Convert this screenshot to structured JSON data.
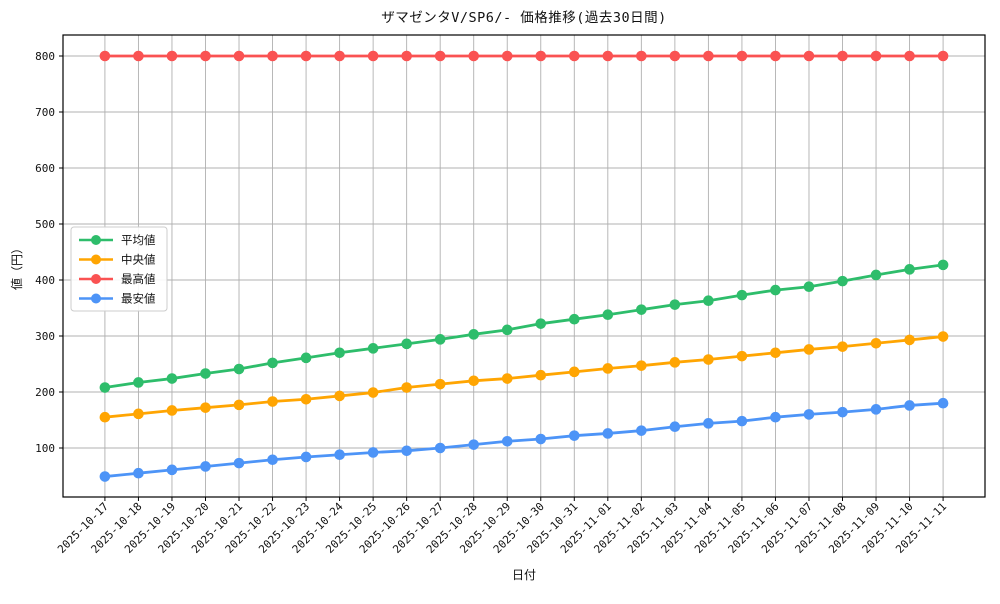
{
  "chart_data": {
    "type": "line",
    "title": "ザマゼンタV/SP6/- 価格推移(過去30日間)",
    "xlabel": "日付",
    "ylabel": "値（円）",
    "x": [
      "2025-10-17",
      "2025-10-18",
      "2025-10-19",
      "2025-10-20",
      "2025-10-21",
      "2025-10-22",
      "2025-10-23",
      "2025-10-24",
      "2025-10-25",
      "2025-10-26",
      "2025-10-27",
      "2025-10-28",
      "2025-10-29",
      "2025-10-30",
      "2025-10-31",
      "2025-11-01",
      "2025-11-02",
      "2025-11-03",
      "2025-11-04",
      "2025-11-05",
      "2025-11-06",
      "2025-11-07",
      "2025-11-08",
      "2025-11-09",
      "2025-11-10",
      "2025-11-11"
    ],
    "series": [
      {
        "key": "average",
        "name": "平均値",
        "color": "#2ebd6b",
        "values": [
          208,
          217,
          224,
          233,
          241,
          252,
          261,
          270,
          278,
          286,
          294,
          303,
          311,
          322,
          330,
          338,
          347,
          356,
          363,
          373,
          382,
          388,
          398,
          409,
          419,
          427
        ]
      },
      {
        "key": "median",
        "name": "中央値",
        "color": "#ffa502",
        "values": [
          155,
          161,
          167,
          172,
          177,
          183,
          187,
          193,
          199,
          208,
          214,
          220,
          224,
          230,
          236,
          242,
          247,
          253,
          258,
          264,
          270,
          276,
          281,
          287,
          293,
          299
        ]
      },
      {
        "key": "highest",
        "name": "最高値",
        "color": "#fa5252",
        "values": [
          800,
          800,
          800,
          800,
          800,
          800,
          800,
          800,
          800,
          800,
          800,
          800,
          800,
          800,
          800,
          800,
          800,
          800,
          800,
          800,
          800,
          800,
          800,
          800,
          800,
          800
        ]
      },
      {
        "key": "lowest",
        "name": "最安値",
        "color": "#4d94f7",
        "values": [
          49,
          55,
          61,
          67,
          73,
          79,
          84,
          88,
          92,
          95,
          100,
          106,
          112,
          116,
          122,
          126,
          131,
          138,
          144,
          148,
          155,
          160,
          164,
          169,
          176,
          180
        ]
      }
    ],
    "yticks": [
      100,
      200,
      300,
      400,
      500,
      600,
      700,
      800
    ],
    "ylim": [
      12.5,
      837.5
    ],
    "grid": true,
    "grid_color": "#b0b0b0",
    "axis_color": "#000000",
    "legend_position": "center-left",
    "legend": [
      "平均値",
      "中央値",
      "最高値",
      "最安値"
    ]
  }
}
